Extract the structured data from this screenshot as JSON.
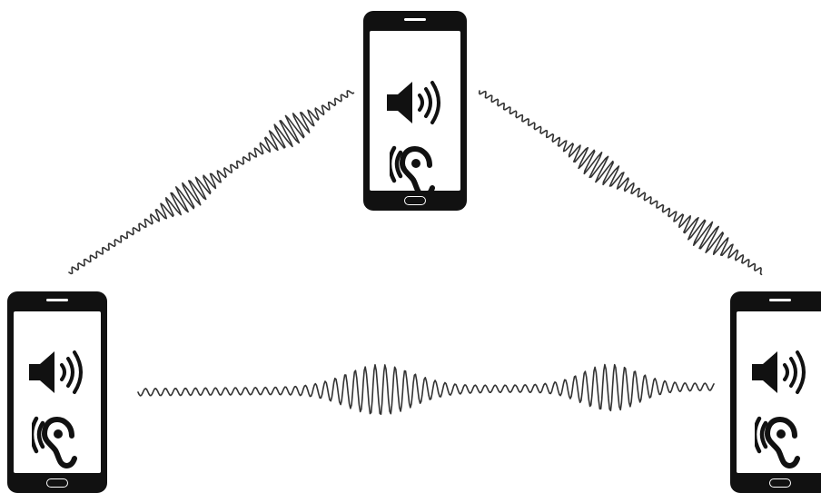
{
  "figure": {
    "colors": {
      "background": "#ffffff",
      "ink": "#111111",
      "wave": "#333333"
    },
    "devices": [
      {
        "id": "phone-top",
        "icons": [
          "speaker-icon",
          "ear-icon"
        ]
      },
      {
        "id": "phone-left",
        "icons": [
          "speaker-icon",
          "ear-icon"
        ]
      },
      {
        "id": "phone-right",
        "icons": [
          "speaker-icon",
          "ear-icon"
        ]
      }
    ],
    "links": [
      {
        "from": "phone-left",
        "to": "phone-top",
        "kind": "sound-wave"
      },
      {
        "from": "phone-top",
        "to": "phone-right",
        "kind": "sound-wave"
      },
      {
        "from": "phone-left",
        "to": "phone-right",
        "kind": "sound-wave"
      }
    ]
  }
}
